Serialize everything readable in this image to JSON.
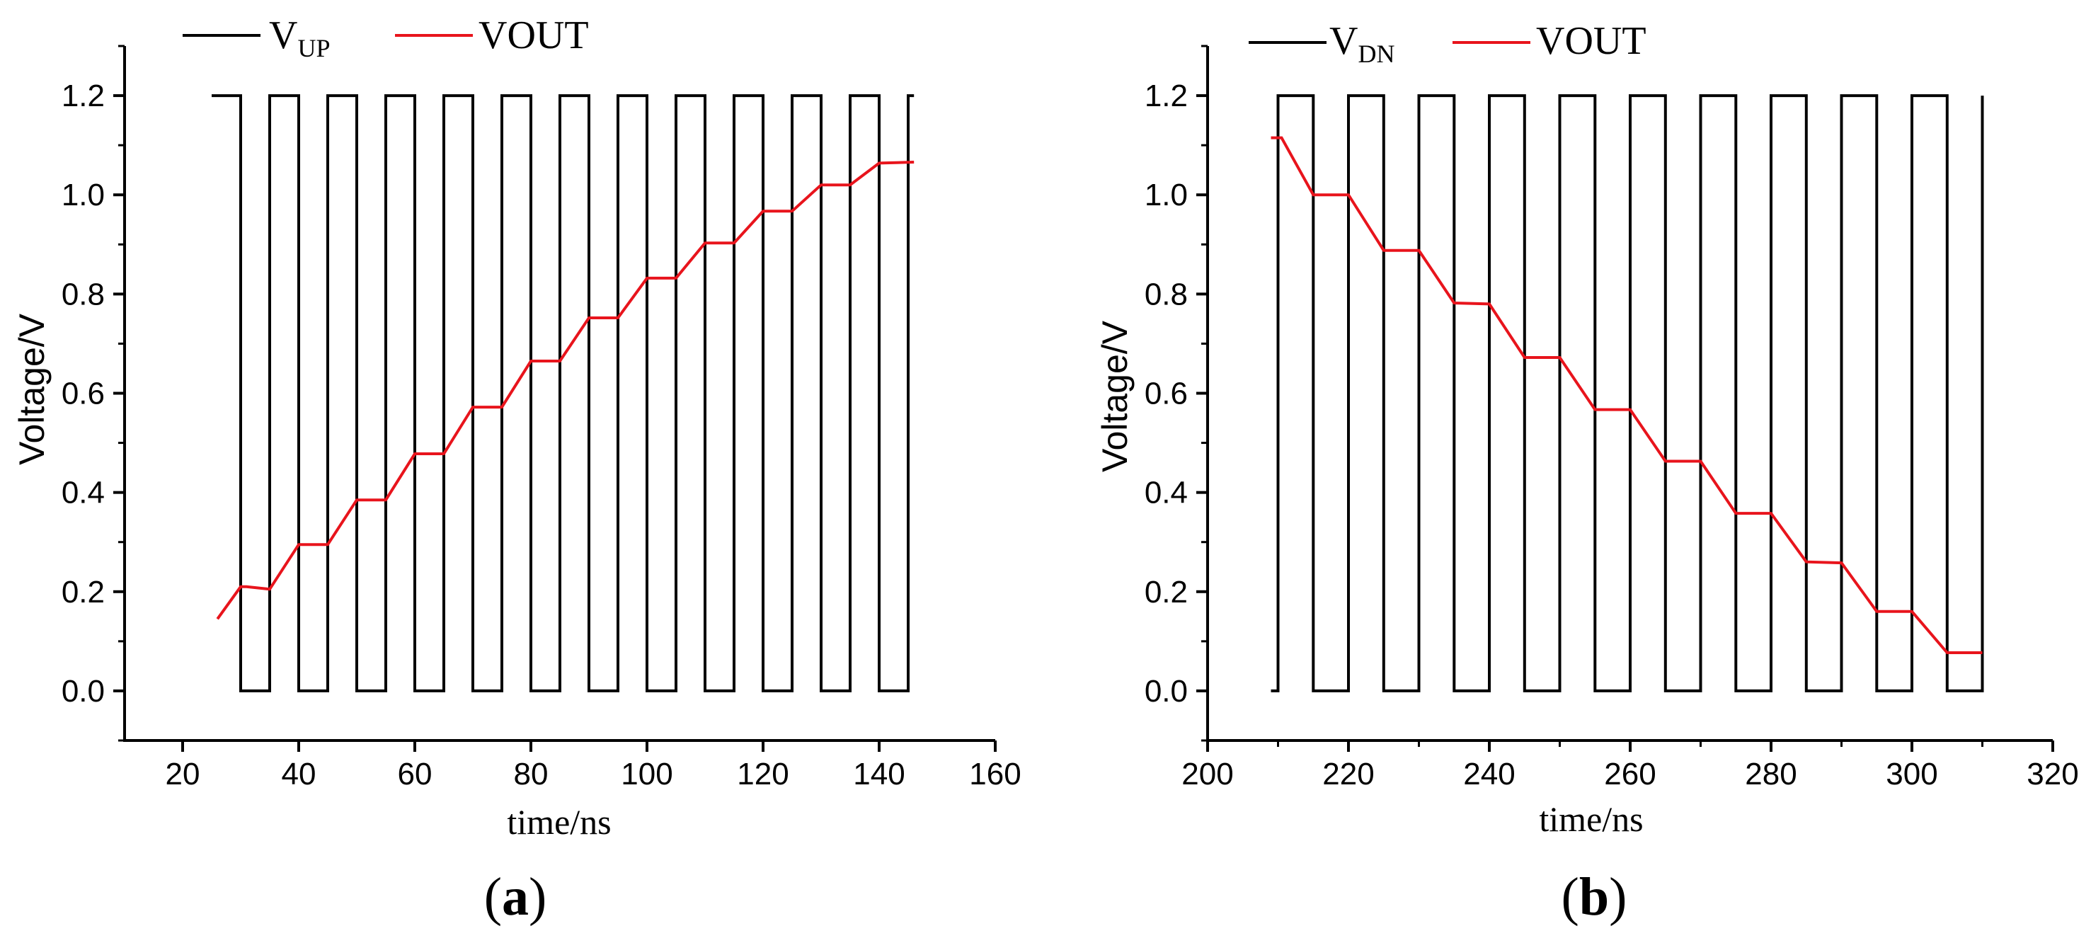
{
  "colors": {
    "square": "#000000",
    "vout": "#e8141c",
    "axis": "#000000"
  },
  "chart_data": [
    {
      "id": "a",
      "type": "line",
      "caption": {
        "open": "(",
        "letter": "a",
        "close": ")"
      },
      "xlabel": "time/ns",
      "ylabel": "Voltage/V",
      "xlim": [
        10,
        160
      ],
      "ylim": [
        -0.1,
        1.3
      ],
      "xticks": [
        20,
        40,
        60,
        80,
        100,
        120,
        140,
        160
      ],
      "xtick_labels": [
        "20",
        "40",
        "60",
        "80",
        "100",
        "120",
        "140",
        "160"
      ],
      "yticks": [
        0.0,
        0.2,
        0.4,
        0.6,
        0.8,
        1.0,
        1.2
      ],
      "ytick_labels": [
        "0.0",
        "0.2",
        "0.4",
        "0.6",
        "0.8",
        "1.0",
        "1.2"
      ],
      "legend_placement": "top-left, above plot",
      "series": [
        {
          "name": "VUP",
          "label_main": "V",
          "label_sub": "UP",
          "color": "#000000",
          "style": "square-wave",
          "high": 1.2,
          "low": 0.0,
          "start": 25,
          "end": 146,
          "transitions": [
            30,
            35,
            40,
            45,
            50,
            55,
            60,
            65,
            70,
            75,
            80,
            85,
            90,
            95,
            100,
            105,
            110,
            115,
            120,
            125,
            130,
            135,
            140,
            145
          ],
          "initial_state": "high"
        },
        {
          "name": "VOUT",
          "label_main": "VOUT",
          "color": "#e8141c",
          "x": [
            26,
            30,
            31,
            35,
            40,
            45,
            50,
            55,
            60,
            65,
            70,
            75,
            80,
            85,
            90,
            95,
            100,
            105,
            110,
            115,
            120,
            125,
            130,
            135,
            140,
            146
          ],
          "y": [
            0.145,
            0.21,
            0.21,
            0.205,
            0.295,
            0.295,
            0.385,
            0.385,
            0.478,
            0.478,
            0.572,
            0.572,
            0.665,
            0.665,
            0.752,
            0.752,
            0.832,
            0.832,
            0.903,
            0.903,
            0.967,
            0.967,
            1.02,
            1.02,
            1.064,
            1.066
          ]
        }
      ]
    },
    {
      "id": "b",
      "type": "line",
      "caption": {
        "open": "(",
        "letter": "b",
        "close": ")"
      },
      "xlabel": "time/ns",
      "ylabel": "Voltage/V",
      "xlim": [
        200,
        320
      ],
      "ylim": [
        -0.1,
        1.3
      ],
      "xticks": [
        200,
        220,
        240,
        260,
        280,
        300,
        320
      ],
      "xtick_labels": [
        "200",
        "220",
        "240",
        "260",
        "280",
        "300",
        "320"
      ],
      "yticks": [
        0.0,
        0.2,
        0.4,
        0.6,
        0.8,
        1.0,
        1.2
      ],
      "ytick_labels": [
        "0.0",
        "0.2",
        "0.4",
        "0.6",
        "0.8",
        "1.0",
        "1.2"
      ],
      "legend_placement": "top-left, above plot",
      "series": [
        {
          "name": "VDN",
          "label_main": "V",
          "label_sub": "DN",
          "color": "#000000",
          "style": "square-wave",
          "high": 1.2,
          "low": 0.0,
          "start": 209,
          "end": 310,
          "transitions": [
            210,
            215,
            220,
            225,
            230,
            235,
            240,
            245,
            250,
            255,
            260,
            265,
            270,
            275,
            280,
            285,
            290,
            295,
            300,
            305,
            310
          ],
          "initial_state": "low"
        },
        {
          "name": "VOUT",
          "label_main": "VOUT",
          "color": "#e8141c",
          "x": [
            209,
            210.5,
            215,
            220,
            225,
            230,
            235,
            240,
            245,
            250,
            255,
            260,
            265,
            270,
            275,
            280,
            285,
            290,
            295,
            300,
            305,
            310
          ],
          "y": [
            1.115,
            1.115,
            1.0,
            1.0,
            0.888,
            0.888,
            0.782,
            0.78,
            0.672,
            0.672,
            0.567,
            0.567,
            0.463,
            0.463,
            0.358,
            0.358,
            0.26,
            0.258,
            0.16,
            0.16,
            0.077,
            0.077
          ]
        }
      ]
    }
  ]
}
